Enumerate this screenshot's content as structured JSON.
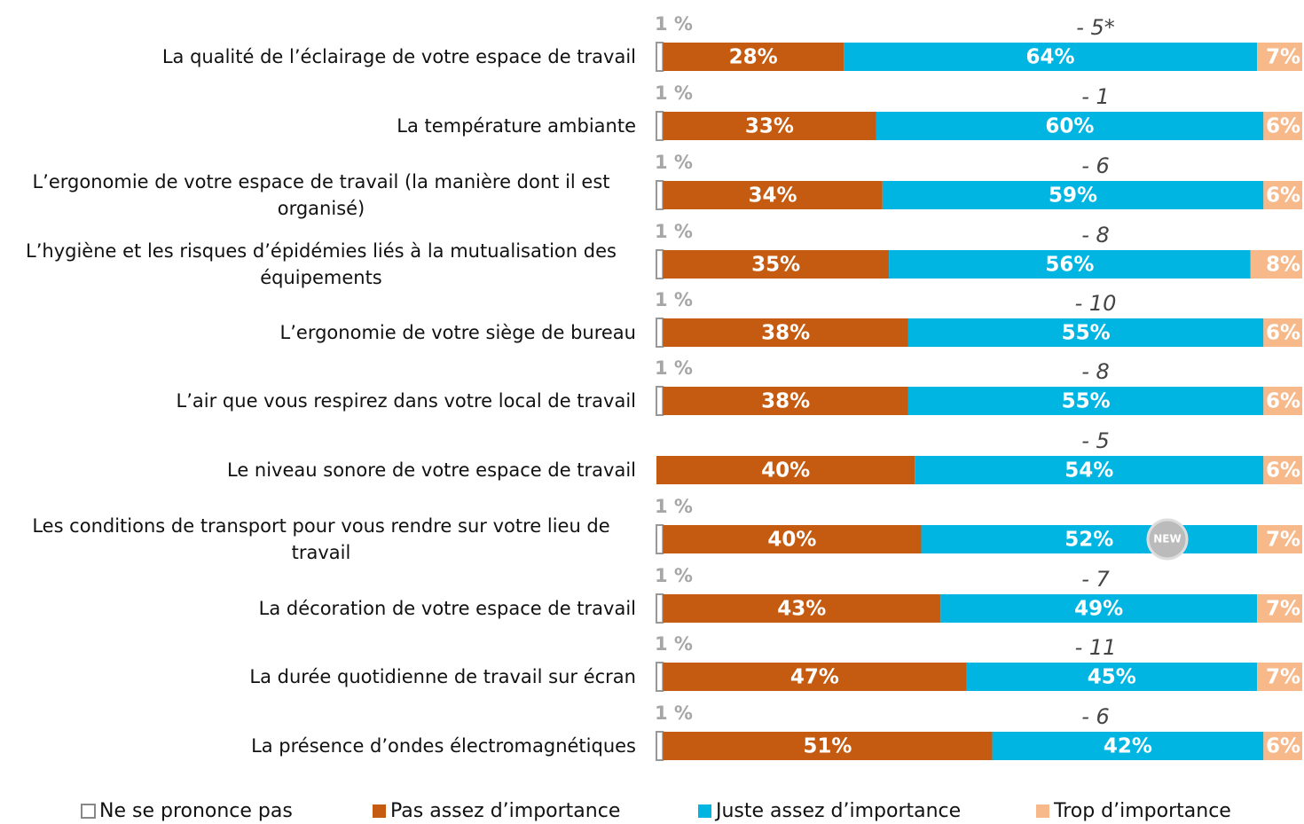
{
  "chart_data": {
    "type": "stacked-bar-horizontal",
    "categories": [
      "La qualité de l’éclairage de votre espace de travail",
      "La température ambiante",
      "L’ergonomie de votre espace de travail (la manière dont il est organisé)",
      "L’hygiène et les risques d’épidémies liés à la mutualisation des équipements",
      "L’ergonomie de votre siège de bureau",
      "L’air que vous respirez dans votre local de travail",
      "Le niveau sonore de votre espace de travail",
      "Les conditions de transport pour vous rendre sur votre lieu de travail",
      "La décoration de votre espace de travail",
      "La durée quotidienne de travail sur écran",
      "La présence d’ondes électromagnétiques"
    ],
    "series": [
      {
        "name": "Ne se prononce pas",
        "color": "#ffffff",
        "values": [
          1,
          1,
          1,
          1,
          1,
          1,
          null,
          1,
          1,
          1,
          1
        ],
        "value_labels": [
          "1 %",
          "1 %",
          "1 %",
          "1 %",
          "1 %",
          "1 %",
          null,
          "1 %",
          "1 %",
          "1 %",
          "1 %"
        ]
      },
      {
        "name": "Pas assez d’importance",
        "color": "#c55a11",
        "values": [
          28,
          33,
          34,
          35,
          38,
          38,
          40,
          40,
          43,
          47,
          51
        ],
        "value_labels": [
          "28%",
          "33%",
          "34%",
          "35%",
          "38%",
          "38%",
          "40%",
          "40%",
          "43%",
          "47%",
          "51%"
        ]
      },
      {
        "name": "Juste assez d’importance",
        "color": "#00b5e2",
        "values": [
          64,
          60,
          59,
          56,
          55,
          55,
          54,
          52,
          49,
          45,
          42
        ],
        "value_labels": [
          "64%",
          "60%",
          "59%",
          "56%",
          "55%",
          "55%",
          "54%",
          "52%",
          "49%",
          "45%",
          "42%"
        ]
      },
      {
        "name": "Trop d’importance",
        "color": "#f8b98a",
        "values": [
          7,
          6,
          6,
          8,
          6,
          6,
          6,
          7,
          7,
          7,
          6
        ],
        "value_labels": [
          "7%",
          "6%",
          "6%",
          "8%",
          "6%",
          "6%",
          "6%",
          "7%",
          "7%",
          "7%",
          "6%"
        ]
      }
    ],
    "annotations": [
      "- 5*",
      "- 1",
      "- 6",
      "- 8",
      "- 10",
      "- 8",
      "- 5",
      null,
      "- 7",
      "- 11",
      "- 6"
    ],
    "badge": "NEW",
    "xlim": [
      0,
      100
    ]
  }
}
